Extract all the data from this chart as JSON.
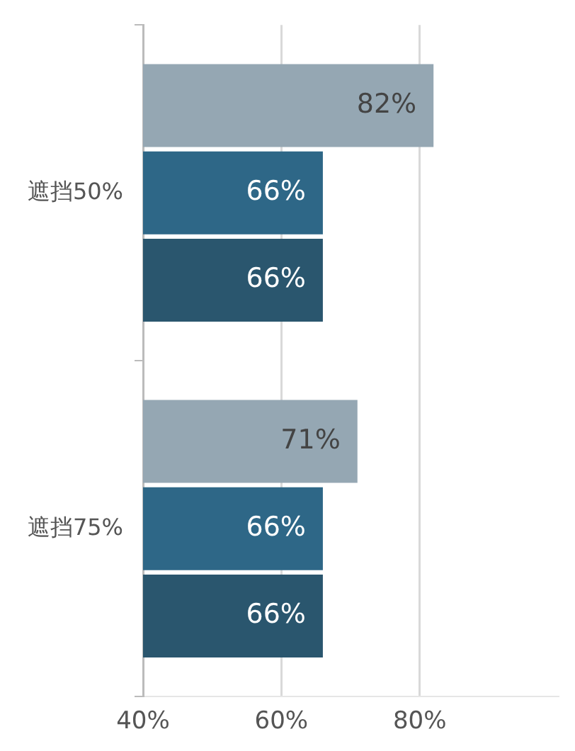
{
  "chart_data": {
    "type": "bar",
    "orientation": "horizontal",
    "categories": [
      "遮挡50%",
      "遮挡75%"
    ],
    "series": [
      {
        "color": "#95a7b3",
        "values": [
          82,
          71
        ],
        "value_labels": [
          "82%",
          "71%"
        ]
      },
      {
        "color": "#2e6787",
        "values": [
          66,
          66
        ],
        "value_labels": [
          "66%",
          "66%"
        ]
      },
      {
        "color": "#2a566e",
        "values": [
          66,
          66
        ],
        "value_labels": [
          "66%",
          "66%"
        ]
      }
    ],
    "xlim": [
      40,
      100
    ],
    "xticks": [
      {
        "value": 40,
        "label": "40%"
      },
      {
        "value": 60,
        "label": "60%"
      },
      {
        "value": 80,
        "label": "80%"
      }
    ],
    "grid": "x",
    "legend": false
  }
}
